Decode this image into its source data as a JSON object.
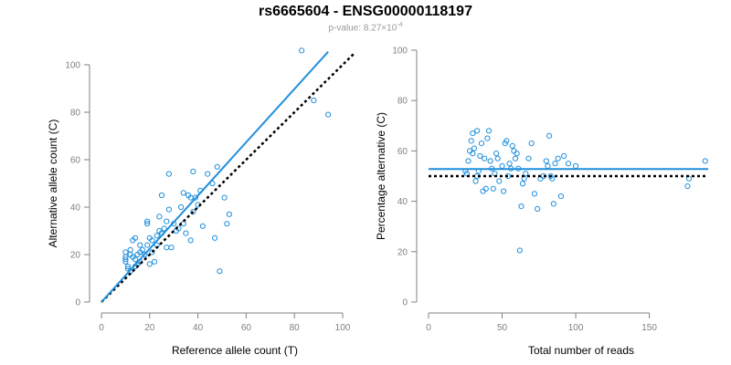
{
  "title": "rs6665604 - ENSG00000118197",
  "subtitle": {
    "prefix": "p-value: 8.27×10",
    "exponent": "-4"
  },
  "colors": {
    "points": "#1f8fdc",
    "fit_line": "#1f8fdc",
    "reference_line": "#000000",
    "axis": "#808080"
  },
  "chart_data": [
    {
      "type": "scatter",
      "xlabel": "Reference allele count (T)",
      "ylabel": "Alternative allele count (C)",
      "xlim": [
        0,
        100
      ],
      "ylim": [
        0,
        100
      ],
      "xticks": [
        0,
        20,
        40,
        60,
        80,
        100
      ],
      "yticks": [
        0,
        20,
        40,
        60,
        80,
        100
      ],
      "grid": false,
      "points": [
        [
          10,
          21
        ],
        [
          10,
          19
        ],
        [
          10,
          18
        ],
        [
          10,
          17
        ],
        [
          11,
          15
        ],
        [
          11,
          14
        ],
        [
          12,
          20
        ],
        [
          12,
          22
        ],
        [
          12,
          13
        ],
        [
          13,
          26
        ],
        [
          13,
          19
        ],
        [
          14,
          27
        ],
        [
          14,
          18
        ],
        [
          14,
          15
        ],
        [
          15,
          20
        ],
        [
          15,
          16
        ],
        [
          16,
          24
        ],
        [
          16,
          21
        ],
        [
          16,
          17
        ],
        [
          17,
          22
        ],
        [
          18,
          20
        ],
        [
          19,
          34
        ],
        [
          19,
          33
        ],
        [
          19,
          24
        ],
        [
          20,
          27
        ],
        [
          20,
          16
        ],
        [
          21,
          26
        ],
        [
          21,
          21
        ],
        [
          22,
          17
        ],
        [
          23,
          28
        ],
        [
          23,
          24
        ],
        [
          24,
          36
        ],
        [
          24,
          30
        ],
        [
          25,
          45
        ],
        [
          25,
          29
        ],
        [
          26,
          31
        ],
        [
          27,
          34
        ],
        [
          27,
          23
        ],
        [
          28,
          54
        ],
        [
          28,
          39
        ],
        [
          29,
          23
        ],
        [
          30,
          33
        ],
        [
          31,
          30
        ],
        [
          32,
          31
        ],
        [
          33,
          40
        ],
        [
          34,
          46
        ],
        [
          34,
          33
        ],
        [
          35,
          29
        ],
        [
          36,
          45
        ],
        [
          37,
          44
        ],
        [
          37,
          26
        ],
        [
          38,
          38
        ],
        [
          38,
          55
        ],
        [
          39,
          44
        ],
        [
          40,
          41
        ],
        [
          41,
          47
        ],
        [
          42,
          32
        ],
        [
          44,
          54
        ],
        [
          46,
          50
        ],
        [
          47,
          27
        ],
        [
          48,
          57
        ],
        [
          49,
          13
        ],
        [
          51,
          44
        ],
        [
          52,
          33
        ],
        [
          53,
          37
        ],
        [
          83,
          106
        ],
        [
          88,
          85
        ],
        [
          94,
          79
        ]
      ],
      "series": [
        {
          "kind": "fit",
          "x": [
            0,
            94
          ],
          "y": [
            0,
            105.5
          ]
        },
        {
          "kind": "reference",
          "x": [
            0,
            105
          ],
          "y": [
            0,
            105
          ]
        }
      ]
    },
    {
      "type": "scatter",
      "xlabel": "Total number of reads",
      "ylabel": "Percentage alternative (C)",
      "xlim": [
        0,
        190
      ],
      "ylim": [
        0,
        100
      ],
      "xticks": [
        0,
        50,
        100,
        150
      ],
      "yticks": [
        0,
        20,
        40,
        60,
        80,
        100
      ],
      "grid": false,
      "points": [
        [
          25,
          52
        ],
        [
          26,
          51
        ],
        [
          27,
          56
        ],
        [
          28,
          60
        ],
        [
          29,
          64
        ],
        [
          30,
          67
        ],
        [
          30,
          59
        ],
        [
          31,
          61
        ],
        [
          32,
          48
        ],
        [
          33,
          68
        ],
        [
          33,
          50
        ],
        [
          34,
          52
        ],
        [
          35,
          58
        ],
        [
          36,
          63
        ],
        [
          37,
          44
        ],
        [
          38,
          57
        ],
        [
          39,
          45
        ],
        [
          40,
          65
        ],
        [
          41,
          68
        ],
        [
          42,
          56
        ],
        [
          43,
          53
        ],
        [
          44,
          45
        ],
        [
          45,
          51
        ],
        [
          46,
          59
        ],
        [
          47,
          57
        ],
        [
          48,
          48
        ],
        [
          50,
          54
        ],
        [
          51,
          44
        ],
        [
          52,
          63
        ],
        [
          53,
          64
        ],
        [
          54,
          50
        ],
        [
          55,
          55
        ],
        [
          56,
          53
        ],
        [
          57,
          62
        ],
        [
          58,
          60
        ],
        [
          59,
          57
        ],
        [
          60,
          59
        ],
        [
          61,
          53
        ],
        [
          62,
          20.5
        ],
        [
          63,
          38
        ],
        [
          64,
          47
        ],
        [
          65,
          49
        ],
        [
          66,
          51
        ],
        [
          68,
          57
        ],
        [
          70,
          63
        ],
        [
          72,
          43
        ],
        [
          74,
          37
        ],
        [
          76,
          49
        ],
        [
          78,
          50
        ],
        [
          80,
          56
        ],
        [
          81,
          54
        ],
        [
          82,
          66
        ],
        [
          83,
          50
        ],
        [
          84,
          49
        ],
        [
          85,
          39
        ],
        [
          86,
          55
        ],
        [
          88,
          57
        ],
        [
          90,
          42
        ],
        [
          92,
          58
        ],
        [
          95,
          55
        ],
        [
          100,
          54
        ],
        [
          176,
          46
        ],
        [
          177,
          49
        ],
        [
          188,
          56
        ]
      ],
      "series": [
        {
          "kind": "fit",
          "x": [
            0,
            190
          ],
          "y": [
            52.8,
            52.8
          ]
        },
        {
          "kind": "reference",
          "x": [
            0,
            190
          ],
          "y": [
            50,
            50
          ]
        }
      ]
    }
  ]
}
